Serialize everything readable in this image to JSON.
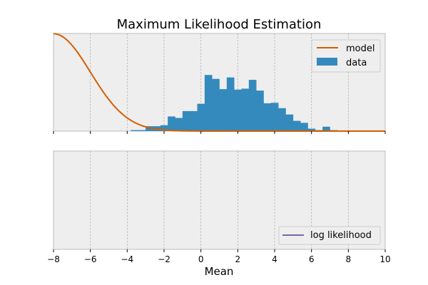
{
  "chart_data": [
    {
      "type": "bar",
      "title": "Maximum Likelihood Estimation",
      "xlim": [
        -8,
        10
      ],
      "grid": {
        "x": true,
        "y": false
      },
      "legend_placement": "top-right",
      "legend": [
        {
          "label": "model",
          "kind": "line",
          "color": "#d55e00"
        },
        {
          "label": "data",
          "kind": "patch",
          "color": "#348abd"
        }
      ],
      "histogram": {
        "name": "data",
        "color": "#348abd",
        "bin_edges": [
          -3.8,
          -3.4,
          -3.0,
          -2.6,
          -2.2,
          -1.8,
          -1.4,
          -1.0,
          -0.6,
          -0.2,
          0.2,
          0.6,
          1.0,
          1.4,
          1.8,
          2.2,
          2.6,
          3.0,
          3.4,
          3.8,
          4.2,
          4.6,
          5.0,
          5.4,
          5.8,
          6.2,
          6.6,
          7.0,
          7.4,
          7.8
        ],
        "density": [
          0.002,
          0.002,
          0.01,
          0.01,
          0.012,
          0.03,
          0.027,
          0.041,
          0.041,
          0.056,
          0.115,
          0.107,
          0.086,
          0.11,
          0.085,
          0.087,
          0.105,
          0.083,
          0.057,
          0.058,
          0.047,
          0.034,
          0.021,
          0.017,
          0.005,
          0.002,
          0.009,
          0.002,
          0.0
        ]
      },
      "model": {
        "name": "model",
        "color": "#d55e00",
        "distribution": "normal",
        "mean": -8,
        "std": 2,
        "x_range": [
          -8,
          10
        ]
      }
    },
    {
      "type": "line",
      "xlim": [
        -8,
        10
      ],
      "xticks": [
        -8,
        -6,
        -4,
        -2,
        0,
        2,
        4,
        6,
        8,
        10
      ],
      "xtick_labels": [
        "−8",
        "−6",
        "−4",
        "−2",
        "0",
        "2",
        "4",
        "6",
        "8",
        "10"
      ],
      "xlabel": "Mean",
      "grid": {
        "x": true,
        "y": false
      },
      "legend_placement": "bottom-right",
      "series": [
        {
          "name": "log likelihood",
          "color": "#7a68a6",
          "x": [],
          "y": []
        }
      ]
    }
  ]
}
